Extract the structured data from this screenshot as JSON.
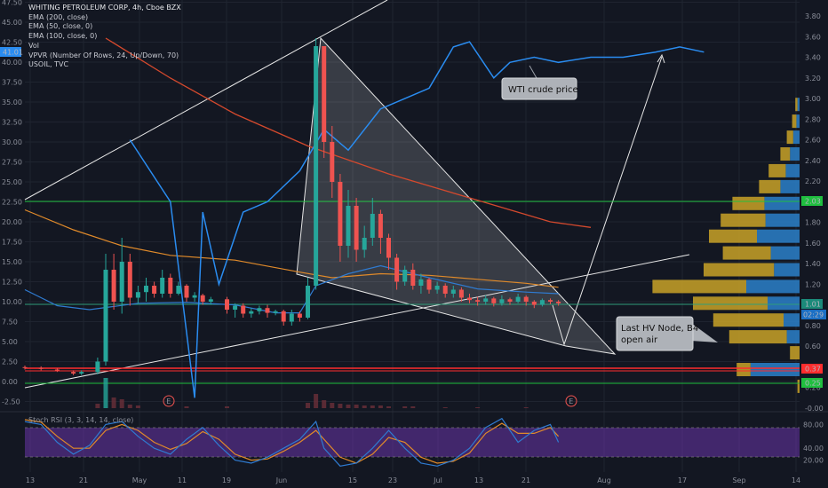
{
  "legend": {
    "title": "WHITING PETROLEUM CORP, 4h, Cboe BZX",
    "ema200": "EMA (200, close)",
    "ema50": "EMA (50, close, 0)",
    "ema100": "EMA (100, close, 0)",
    "vol": "Vol",
    "vpvr": "VPVR (Number Of Rows, 24, Up/Down, 70)",
    "usoil": "USOIL, TVC"
  },
  "annotations": {
    "wti": "WTI crude price",
    "hv_line1": "Last HV Node, B4",
    "hv_line2": "open air"
  },
  "colors": {
    "background": "#131722",
    "up": "#26a69a",
    "down": "#ef5350",
    "usoil": "#2a8cf0",
    "ema200": "#d4492d",
    "ema100": "#e08a2a",
    "ema50": "#2f7bd1",
    "stoch_k": "#2f7bd1",
    "stoch_d": "#e08a2a",
    "green_level": "#1fbf3f",
    "red_level": "#ff2d2d",
    "vpvr_up": "#2b80c9",
    "vpvr_down": "#c9a227"
  },
  "chart_data": {
    "type": "line",
    "price_axis": {
      "ticks": [
        "-2.50",
        "0.00",
        "2.50",
        "5.00",
        "7.50",
        "10.00",
        "12.50",
        "15.00",
        "17.50",
        "20.00",
        "22.50",
        "25.00",
        "27.50",
        "30.00",
        "32.50",
        "35.00",
        "37.50",
        "40.00",
        "42.50",
        "45.00",
        "47.50"
      ],
      "ylim": [
        -2.5,
        47.5
      ]
    },
    "oil_axis": {
      "ticks": [
        "-0.00",
        "0.20",
        "0.40",
        "0.60",
        "0.80",
        "1.00",
        "1.20",
        "1.40",
        "1.60",
        "1.80",
        "2.00",
        "2.20",
        "2.40",
        "2.60",
        "2.80",
        "3.00",
        "3.20",
        "3.40",
        "3.60",
        "3.80"
      ],
      "ylim": [
        0,
        3.8
      ]
    },
    "x_ticks": [
      "13",
      "21",
      "May",
      "11",
      "19",
      "Jun",
      "15",
      "23",
      "Jul",
      "13",
      "21",
      "Aug",
      "17",
      "Sep",
      "14"
    ],
    "stoch_axis": {
      "ticks": [
        "0.00",
        "20.00",
        "40.00",
        "60.00",
        "80.00"
      ],
      "ylim": [
        0,
        100
      ]
    },
    "labels": {
      "current_price": "41.01",
      "level_green_upper": "2.03",
      "level_blue": "1.01",
      "timer": "02:29",
      "level_red": "0.37",
      "level_green_lower": "0.25"
    },
    "stoch_title": "Stoch RSI (3, 3, 14, 14, close)",
    "event_marker": "E",
    "series": [
      {
        "name": "USOIL, TVC",
        "points": [
          [
            13,
            2.6
          ],
          [
            18,
            2.0
          ],
          [
            21,
            0.1
          ],
          [
            22,
            1.9
          ],
          [
            24,
            1.2
          ],
          [
            27,
            1.9
          ],
          [
            30,
            2.0
          ],
          [
            34,
            2.3
          ],
          [
            37,
            2.7
          ],
          [
            40,
            2.5
          ],
          [
            44,
            2.9
          ],
          [
            47,
            3.0
          ],
          [
            50,
            3.1
          ],
          [
            53,
            3.5
          ],
          [
            55,
            3.55
          ],
          [
            58,
            3.2
          ],
          [
            60,
            3.35
          ],
          [
            63,
            3.4
          ],
          [
            66,
            3.35
          ],
          [
            70,
            3.4
          ],
          [
            74,
            3.4
          ],
          [
            78,
            3.45
          ],
          [
            81,
            3.5
          ],
          [
            84,
            3.45
          ]
        ]
      },
      {
        "name": "EMA (200, close)",
        "points": [
          [
            10,
            43.0
          ],
          [
            18,
            38.0
          ],
          [
            26,
            33.5
          ],
          [
            35,
            29.5
          ],
          [
            45,
            26.0
          ],
          [
            55,
            23.0
          ],
          [
            65,
            20.0
          ],
          [
            70,
            19.3
          ]
        ]
      },
      {
        "name": "EMA (100, close, 0)",
        "points": [
          [
            0,
            21.5
          ],
          [
            6,
            19.0
          ],
          [
            12,
            17.0
          ],
          [
            18,
            15.8
          ],
          [
            26,
            15.2
          ],
          [
            34,
            13.7
          ],
          [
            38,
            13.0
          ],
          [
            44,
            13.5
          ],
          [
            50,
            13.3
          ],
          [
            56,
            12.8
          ],
          [
            62,
            12.3
          ],
          [
            66,
            11.8
          ]
        ]
      },
      {
        "name": "EMA (50, close, 0)",
        "points": [
          [
            0,
            11.5
          ],
          [
            4,
            9.5
          ],
          [
            8,
            9.0
          ],
          [
            14,
            9.8
          ],
          [
            20,
            9.9
          ],
          [
            26,
            9.6
          ],
          [
            31,
            8.6
          ],
          [
            34,
            8.6
          ],
          [
            36,
            12.0
          ],
          [
            40,
            13.5
          ],
          [
            44,
            14.5
          ],
          [
            50,
            13.0
          ],
          [
            56,
            11.6
          ],
          [
            62,
            11.2
          ],
          [
            66,
            11.0
          ]
        ]
      }
    ],
    "candles": [
      [
        0,
        1.8,
        1.7,
        2.0,
        1.5
      ],
      [
        2,
        1.7,
        1.6,
        1.9,
        1.4
      ],
      [
        4,
        1.5,
        1.4,
        1.7,
        1.2
      ],
      [
        6,
        1.2,
        1.0,
        1.4,
        0.8
      ],
      [
        7,
        1.0,
        1.2,
        1.4,
        0.8
      ],
      [
        9,
        1.2,
        2.5,
        3.0,
        0.9
      ],
      [
        10,
        2.5,
        14.0,
        16.0,
        2.0
      ],
      [
        11,
        14.0,
        10.0,
        16.0,
        9.0
      ],
      [
        12,
        10.0,
        15.0,
        18.0,
        8.5
      ],
      [
        13,
        15.0,
        10.5,
        16.0,
        9.5
      ],
      [
        14,
        10.5,
        11.2,
        12.0,
        9.8
      ],
      [
        15,
        11.2,
        12.0,
        13.0,
        10.0
      ],
      [
        16,
        12.0,
        11.0,
        12.5,
        10.5
      ],
      [
        17,
        11.0,
        13.0,
        14.0,
        10.5
      ],
      [
        18,
        13.0,
        11.0,
        13.5,
        10.5
      ],
      [
        19,
        11.0,
        12.0,
        12.5,
        10.8
      ],
      [
        20,
        12.0,
        10.5,
        12.2,
        10.0
      ],
      [
        21,
        10.5,
        10.8,
        11.2,
        10.0
      ],
      [
        22,
        10.8,
        10.0,
        11.0,
        9.6
      ],
      [
        23,
        10.0,
        10.3,
        10.6,
        9.6
      ],
      [
        25,
        10.3,
        9.0,
        10.6,
        8.5
      ],
      [
        26,
        9.0,
        9.5,
        9.8,
        8.0
      ],
      [
        27,
        9.5,
        8.5,
        9.8,
        8.0
      ],
      [
        28,
        8.5,
        8.8,
        9.2,
        8.0
      ],
      [
        29,
        8.8,
        9.2,
        9.5,
        8.4
      ],
      [
        30,
        9.2,
        8.6,
        9.6,
        8.0
      ],
      [
        31,
        8.6,
        8.8,
        9.0,
        8.3
      ],
      [
        32,
        8.8,
        7.5,
        9.0,
        7.0
      ],
      [
        33,
        7.5,
        8.5,
        9.0,
        7.0
      ],
      [
        34,
        8.5,
        8.0,
        8.8,
        7.5
      ],
      [
        35,
        8.0,
        12.0,
        13.0,
        7.8
      ],
      [
        36,
        12.0,
        42.0,
        43.0,
        11.5
      ],
      [
        37,
        42.0,
        30.0,
        41.0,
        28.0
      ],
      [
        38,
        30.0,
        25.0,
        32.0,
        23.0
      ],
      [
        39,
        25.0,
        17.0,
        26.0,
        15.0
      ],
      [
        40,
        17.0,
        22.0,
        24.0,
        15.5
      ],
      [
        41,
        22.0,
        16.5,
        23.0,
        15.0
      ],
      [
        42,
        16.5,
        18.0,
        19.5,
        15.5
      ],
      [
        43,
        18.0,
        21.0,
        23.0,
        17.0
      ],
      [
        44,
        21.0,
        18.0,
        21.5,
        16.0
      ],
      [
        45,
        18.0,
        15.5,
        18.5,
        14.0
      ],
      [
        46,
        15.5,
        12.5,
        16.0,
        11.5
      ],
      [
        47,
        12.5,
        14.0,
        14.5,
        12.0
      ],
      [
        48,
        14.0,
        12.0,
        14.8,
        11.5
      ],
      [
        49,
        12.0,
        12.8,
        13.5,
        11.0
      ],
      [
        50,
        12.8,
        11.5,
        13.0,
        11.0
      ],
      [
        51,
        11.5,
        12.0,
        12.5,
        11.0
      ],
      [
        52,
        12.0,
        11.0,
        12.3,
        10.5
      ],
      [
        53,
        11.0,
        11.5,
        12.0,
        10.5
      ],
      [
        54,
        11.5,
        10.5,
        11.8,
        10.0
      ],
      [
        55,
        10.5,
        10.2,
        11.0,
        9.8
      ],
      [
        56,
        10.2,
        10.0,
        10.6,
        9.5
      ],
      [
        57,
        10.0,
        10.4,
        10.8,
        9.6
      ],
      [
        58,
        10.4,
        9.8,
        10.6,
        9.4
      ],
      [
        59,
        9.8,
        10.3,
        10.8,
        9.5
      ],
      [
        60,
        10.3,
        10.0,
        10.5,
        9.6
      ],
      [
        61,
        10.0,
        10.6,
        11.0,
        9.8
      ],
      [
        62,
        10.6,
        10.0,
        10.8,
        9.5
      ],
      [
        63,
        10.0,
        9.6,
        10.2,
        9.2
      ],
      [
        64,
        9.6,
        10.2,
        10.4,
        9.4
      ],
      [
        65,
        10.2,
        10.0,
        10.4,
        9.7
      ],
      [
        66,
        10.0,
        9.8,
        10.2,
        9.5
      ]
    ],
    "volume": [
      [
        9,
        5
      ],
      [
        10,
        34
      ],
      [
        11,
        12
      ],
      [
        12,
        10
      ],
      [
        13,
        4
      ],
      [
        14,
        3
      ],
      [
        20,
        2
      ],
      [
        25,
        2
      ],
      [
        35,
        6
      ],
      [
        36,
        16
      ],
      [
        37,
        9
      ],
      [
        38,
        6
      ],
      [
        39,
        5
      ],
      [
        40,
        4
      ],
      [
        41,
        4
      ],
      [
        42,
        3
      ],
      [
        43,
        3
      ],
      [
        44,
        3
      ],
      [
        45,
        2
      ],
      [
        47,
        2
      ],
      [
        48,
        2
      ],
      [
        52,
        1
      ],
      [
        56,
        1
      ],
      [
        62,
        1
      ]
    ],
    "vpvr": [
      {
        "price": -0.6,
        "up": 2,
        "down": 0
      },
      {
        "price": 1.5,
        "up": 13,
        "down": 46
      },
      {
        "price": 3.6,
        "up": 9,
        "down": 0
      },
      {
        "price": 5.6,
        "up": 54,
        "down": 12
      },
      {
        "price": 7.7,
        "up": 66,
        "down": 15
      },
      {
        "price": 9.8,
        "up": 70,
        "down": 30
      },
      {
        "price": 11.9,
        "up": 88,
        "down": 50
      },
      {
        "price": 14.0,
        "up": 66,
        "down": 24
      },
      {
        "price": 16.1,
        "up": 45,
        "down": 27
      },
      {
        "price": 18.2,
        "up": 45,
        "down": 40
      },
      {
        "price": 20.2,
        "up": 42,
        "down": 32
      },
      {
        "price": 22.3,
        "up": 30,
        "down": 33
      },
      {
        "price": 24.4,
        "up": 20,
        "down": 18
      },
      {
        "price": 26.4,
        "up": 16,
        "down": 13
      },
      {
        "price": 28.5,
        "up": 9,
        "down": 9
      },
      {
        "price": 30.6,
        "up": 6,
        "down": 6
      },
      {
        "price": 32.6,
        "up": 4,
        "down": 3
      },
      {
        "price": 34.7,
        "up": 2,
        "down": 2
      }
    ],
    "stoch_k": [
      [
        0,
        85
      ],
      [
        2,
        80
      ],
      [
        4,
        50
      ],
      [
        6,
        30
      ],
      [
        8,
        45
      ],
      [
        10,
        80
      ],
      [
        12,
        85
      ],
      [
        14,
        60
      ],
      [
        16,
        40
      ],
      [
        18,
        30
      ],
      [
        20,
        55
      ],
      [
        22,
        75
      ],
      [
        24,
        45
      ],
      [
        26,
        20
      ],
      [
        28,
        15
      ],
      [
        30,
        25
      ],
      [
        32,
        40
      ],
      [
        34,
        55
      ],
      [
        36,
        85
      ],
      [
        37,
        40
      ],
      [
        39,
        10
      ],
      [
        41,
        15
      ],
      [
        43,
        40
      ],
      [
        45,
        70
      ],
      [
        47,
        40
      ],
      [
        49,
        15
      ],
      [
        51,
        10
      ],
      [
        53,
        20
      ],
      [
        55,
        40
      ],
      [
        57,
        75
      ],
      [
        59,
        90
      ],
      [
        61,
        50
      ],
      [
        63,
        70
      ],
      [
        65,
        80
      ],
      [
        66,
        50
      ]
    ],
    "stoch_d": [
      [
        0,
        88
      ],
      [
        2,
        84
      ],
      [
        4,
        60
      ],
      [
        6,
        40
      ],
      [
        8,
        40
      ],
      [
        10,
        70
      ],
      [
        12,
        80
      ],
      [
        14,
        70
      ],
      [
        16,
        50
      ],
      [
        18,
        38
      ],
      [
        20,
        48
      ],
      [
        22,
        68
      ],
      [
        24,
        55
      ],
      [
        26,
        30
      ],
      [
        28,
        20
      ],
      [
        30,
        22
      ],
      [
        32,
        35
      ],
      [
        34,
        50
      ],
      [
        36,
        70
      ],
      [
        37,
        55
      ],
      [
        39,
        25
      ],
      [
        41,
        15
      ],
      [
        43,
        30
      ],
      [
        45,
        58
      ],
      [
        47,
        50
      ],
      [
        49,
        25
      ],
      [
        51,
        15
      ],
      [
        53,
        18
      ],
      [
        55,
        32
      ],
      [
        57,
        65
      ],
      [
        59,
        82
      ],
      [
        61,
        65
      ],
      [
        63,
        65
      ],
      [
        65,
        75
      ],
      [
        66,
        60
      ]
    ]
  }
}
